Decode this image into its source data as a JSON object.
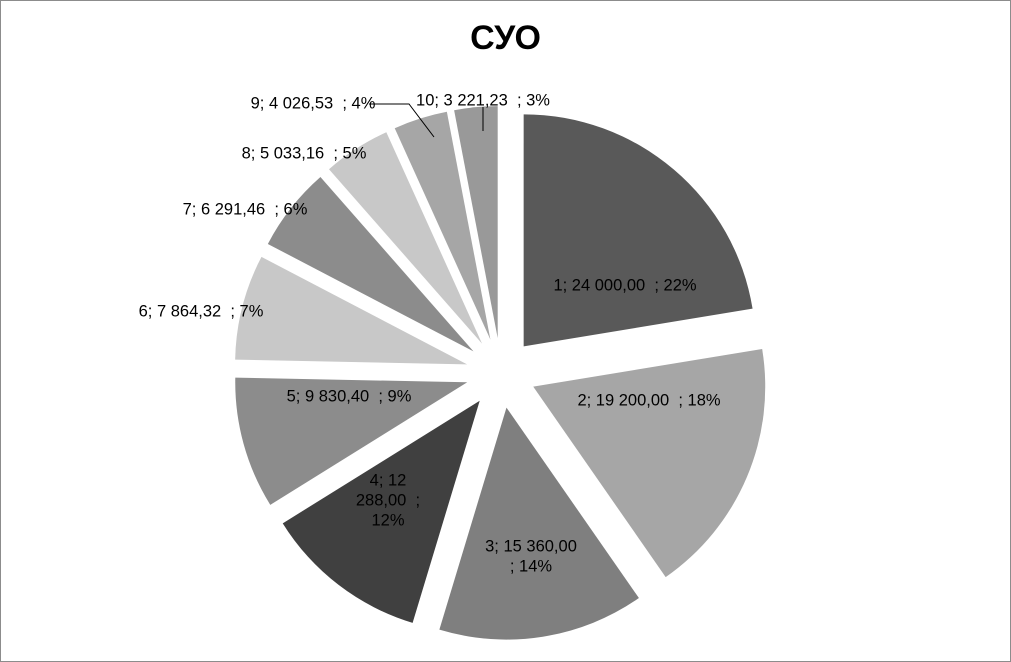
{
  "chart_data": {
    "type": "pie",
    "title": "СУО",
    "exploded": true,
    "start_angle_deg": 0,
    "direction": "clockwise",
    "slices": [
      {
        "category": "1",
        "value": 24000.0,
        "percent": 22,
        "color": "#595959",
        "label": [
          "1; 24 000,00  ; 22%"
        ]
      },
      {
        "category": "2",
        "value": 19200.0,
        "percent": 18,
        "color": "#a6a6a6",
        "label": [
          "2; 19 200,00  ; 18%"
        ]
      },
      {
        "category": "3",
        "value": 15360.0,
        "percent": 14,
        "color": "#7f7f7f",
        "label": [
          "3; 15 360,00",
          "; 14%"
        ]
      },
      {
        "category": "4",
        "value": 12288.0,
        "percent": 12,
        "color": "#404040",
        "label": [
          "4; 12",
          "288,00  ;",
          "12%"
        ]
      },
      {
        "category": "5",
        "value": 9830.4,
        "percent": 9,
        "color": "#8c8c8c",
        "label": [
          "5; 9 830,40  ; 9%"
        ]
      },
      {
        "category": "6",
        "value": 7864.32,
        "percent": 7,
        "color": "#c8c8c8",
        "label": [
          "6; 7 864,32  ; 7%"
        ]
      },
      {
        "category": "7",
        "value": 6291.46,
        "percent": 6,
        "color": "#8c8c8c",
        "label": [
          "7; 6 291,46  ; 6%"
        ]
      },
      {
        "category": "8",
        "value": 5033.16,
        "percent": 5,
        "color": "#c8c8c8",
        "label": [
          "8; 5 033,16  ; 5%"
        ]
      },
      {
        "category": "9",
        "value": 4026.53,
        "percent": 4,
        "color": "#a6a6a6",
        "label": [
          "9; 4 026,53  ; 4%"
        ]
      },
      {
        "category": "10",
        "value": 3221.23,
        "percent": 3,
        "color": "#999999",
        "label": [
          "10; 3 221,23  ; 3%"
        ]
      }
    ]
  }
}
